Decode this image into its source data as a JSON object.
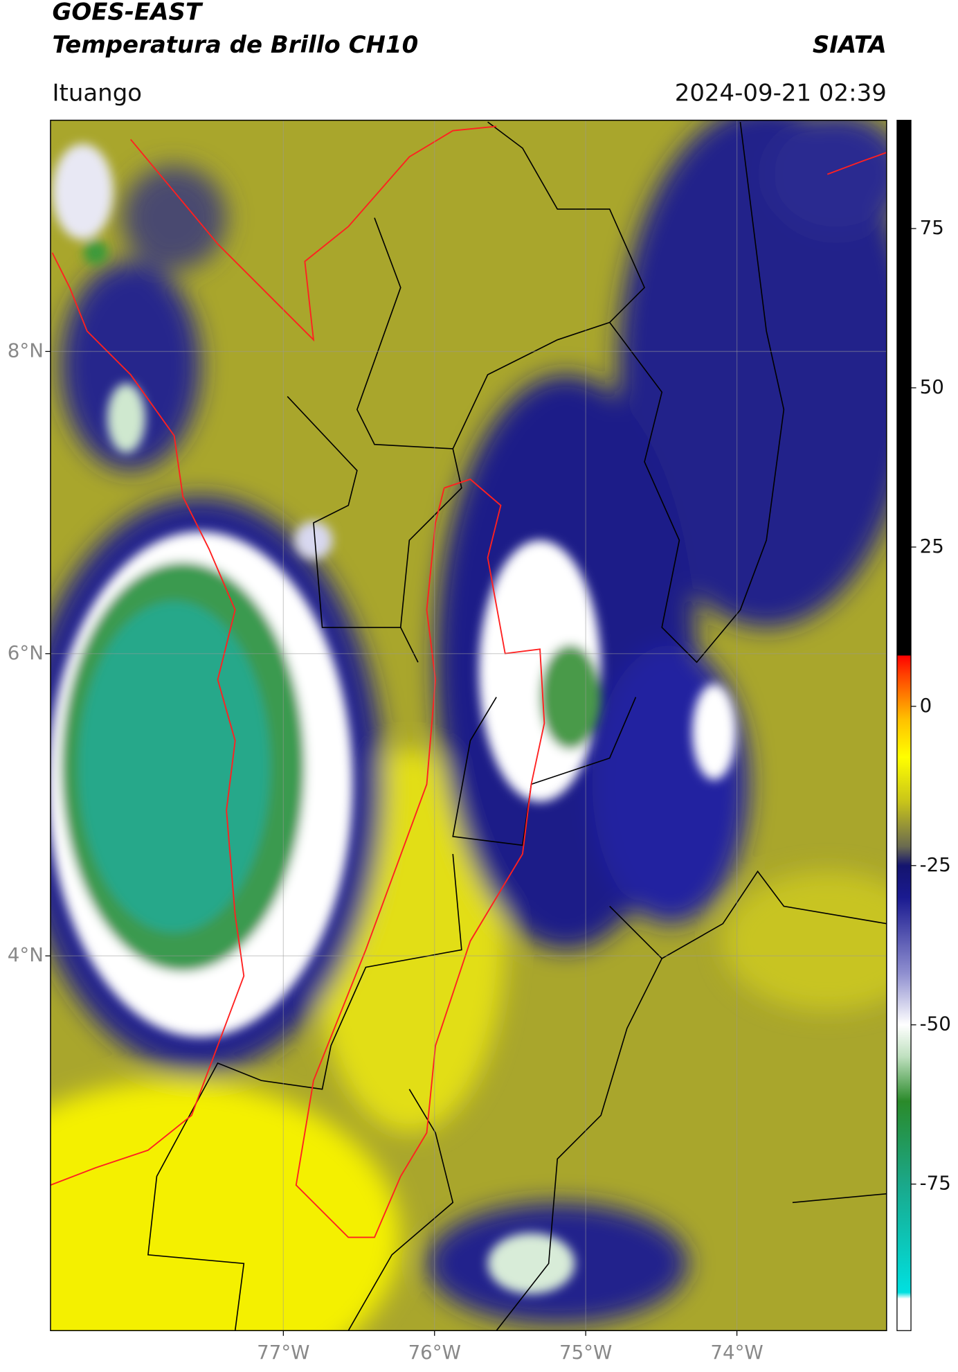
{
  "header": {
    "title": "GOES-EAST",
    "subtitle": "Temperatura de Brillo CH10",
    "source": "SIATA",
    "location": "Ituango",
    "timestamp": "2024-09-21 02:39"
  },
  "map": {
    "xlim": [
      -78.54,
      -73.01
    ],
    "ylim": [
      1.52,
      9.53
    ],
    "xticks": [
      {
        "value": -77,
        "label": "77°W"
      },
      {
        "value": -76,
        "label": "76°W"
      },
      {
        "value": -75,
        "label": "75°W"
      },
      {
        "value": -74,
        "label": "74°W"
      }
    ],
    "yticks": [
      {
        "value": 8,
        "label": "8°N"
      },
      {
        "value": 6,
        "label": "6°N"
      },
      {
        "value": 4,
        "label": "4°N"
      }
    ],
    "grid": true
  },
  "colorbar": {
    "lim": [
      -98,
      92
    ],
    "ticks": [
      75,
      50,
      25,
      0,
      -25,
      -50,
      -75
    ],
    "colormap": [
      {
        "value": -98,
        "color": "#ffffff"
      },
      {
        "value": -93,
        "color": "#ffffff"
      },
      {
        "value": -92,
        "color": "#00e0e0"
      },
      {
        "value": -75,
        "color": "#1aa88a"
      },
      {
        "value": -62,
        "color": "#2a8a2a"
      },
      {
        "value": -55,
        "color": "#bfe0bf"
      },
      {
        "value": -50,
        "color": "#ffffff"
      },
      {
        "value": -42,
        "color": "#9090d0"
      },
      {
        "value": -30,
        "color": "#1a1a90"
      },
      {
        "value": -25,
        "color": "#14146e"
      },
      {
        "value": -22,
        "color": "#6a6a50"
      },
      {
        "value": -15,
        "color": "#c8c41a"
      },
      {
        "value": -8,
        "color": "#ffff00"
      },
      {
        "value": -2,
        "color": "#ffc000"
      },
      {
        "value": 5,
        "color": "#ff4000"
      },
      {
        "value": 8,
        "color": "#ff0000"
      },
      {
        "value": 8,
        "color": "#000000"
      },
      {
        "value": 92,
        "color": "#000000"
      }
    ]
  }
}
